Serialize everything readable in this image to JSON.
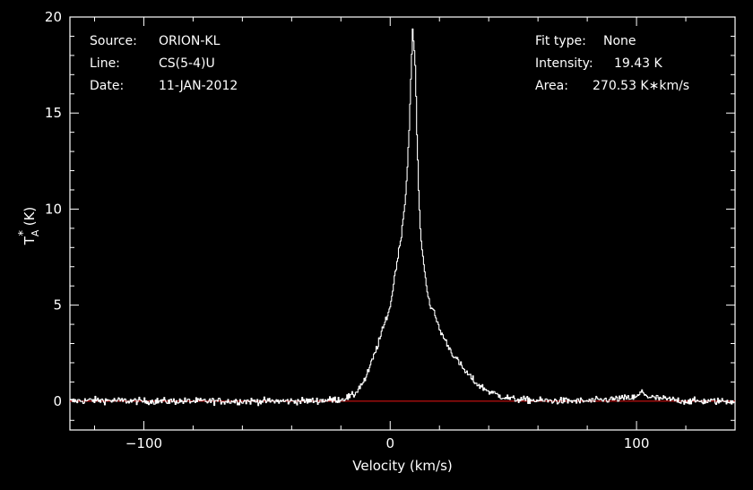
{
  "colors": {
    "background": "#000000",
    "foreground": "#ffffff",
    "baseline": "#d01010"
  },
  "chart_data": {
    "type": "line",
    "xlabel": "Velocity (km/s)",
    "ylabel": "T*A (K)",
    "ylabel_main": "T",
    "ylabel_sub": "A",
    "ylabel_sup": "*",
    "ylabel_unit": " (K)",
    "xlim": [
      -130,
      140
    ],
    "ylim": [
      -1.5,
      20
    ],
    "x_ticks": [
      -100,
      0,
      100
    ],
    "x_tick_labels": [
      "−100",
      "0",
      "100"
    ],
    "y_ticks": [
      0,
      5,
      10,
      15,
      20
    ],
    "y_tick_labels": [
      "0",
      "5",
      "10",
      "15",
      "20"
    ],
    "grid": false,
    "legend": "none",
    "baseline_value": 0,
    "info": {
      "source_key": "Source:",
      "source_value": "ORION-KL",
      "line_key": "Line:",
      "line_value": "CS(5-4)U",
      "date_key": "Date:",
      "date_value": "11-JAN-2012",
      "fit_key": "Fit type:",
      "fit_value": "None",
      "intensity_key": "Intensity:",
      "intensity_value": "19.43 K",
      "area_key": "Area:",
      "area_value": "270.53 K∗km/s"
    },
    "series": [
      {
        "color": "#ffffff",
        "x": [
          -130,
          -120,
          -100,
          -80,
          -60,
          -40,
          -30,
          -20,
          -15,
          -10,
          -5,
          0,
          2,
          4,
          6,
          7,
          8,
          9,
          10,
          11,
          12,
          14,
          16,
          18,
          20,
          25,
          30,
          35,
          40,
          45,
          50,
          60,
          80,
          100,
          102,
          105,
          120,
          140
        ],
        "y": [
          0.0,
          0.05,
          0.0,
          0.0,
          0.0,
          0.0,
          0.02,
          0.1,
          0.3,
          1.2,
          3.0,
          5.0,
          6.8,
          8.3,
          10.5,
          12.5,
          15.8,
          19.43,
          17.5,
          12.5,
          9.0,
          6.5,
          5.0,
          4.5,
          3.7,
          2.5,
          1.6,
          0.9,
          0.5,
          0.25,
          0.1,
          0.03,
          0.0,
          0.2,
          0.5,
          0.2,
          0.0,
          0.0
        ],
        "noise_rms_K": 0.18
      }
    ]
  }
}
